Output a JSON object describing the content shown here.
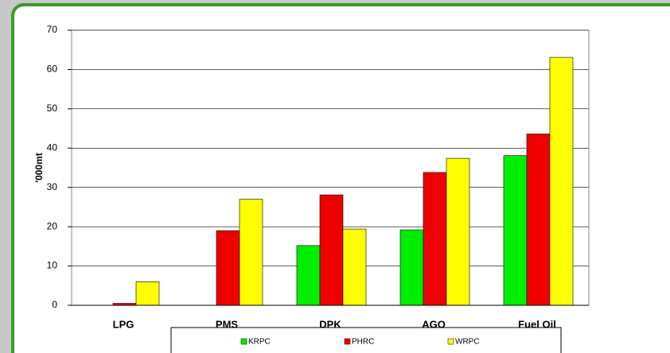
{
  "chart_data": {
    "type": "bar",
    "y_label": "'000mt",
    "categories": [
      "LPG",
      "PMS",
      "DPK",
      "AGO",
      "Fuel Oil"
    ],
    "series": [
      {
        "name": "KRPC",
        "color": "#00ee00",
        "values": [
          0,
          0,
          15.2,
          19.2,
          38.1
        ]
      },
      {
        "name": "PHRC",
        "color": "#ee0000",
        "values": [
          0.5,
          19,
          28.1,
          33.8,
          43.6
        ]
      },
      {
        "name": "WRPC",
        "color": "#ffff00",
        "values": [
          6,
          27,
          19.4,
          37.4,
          63.1
        ]
      }
    ],
    "ylim": [
      0,
      70
    ],
    "yticks": [
      0,
      10,
      20,
      30,
      40,
      50,
      60,
      70
    ],
    "grid": true
  }
}
